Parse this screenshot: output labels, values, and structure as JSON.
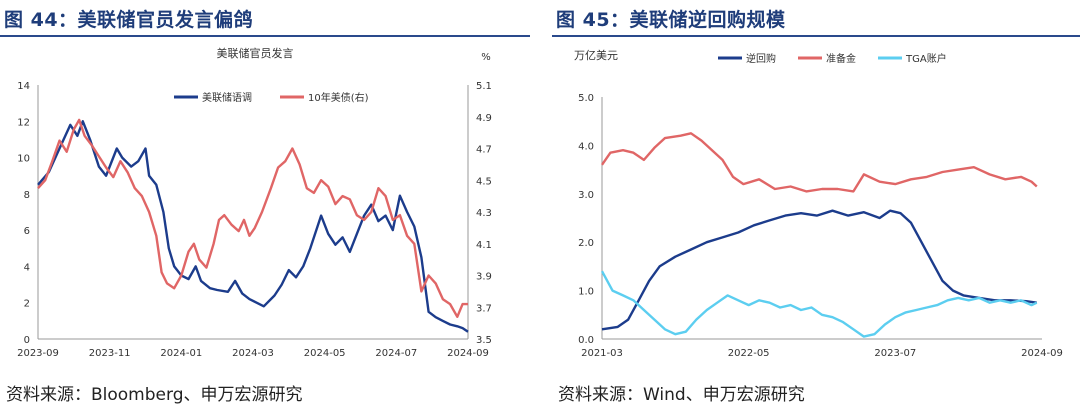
{
  "left_panel": {
    "figure_title": "图 44：美联储官员发言偏鸽",
    "source": "资料来源：Bloomberg、申万宏源研究"
  },
  "right_panel": {
    "figure_title": "图 45：美联储逆回购规模",
    "source": "资料来源：Wind、申万宏源研究"
  },
  "colors": {
    "navy": "#1c3c8c",
    "red": "#e06666",
    "cyan": "#5ccef0",
    "title_rule": "#2a4a8c"
  },
  "chart_data": [
    {
      "type": "line",
      "title": "美联储官员发言",
      "y2_unit": "%",
      "x_tick_labels": [
        "2023-09",
        "2023-11",
        "2024-01",
        "2024-03",
        "2024-05",
        "2024-07",
        "2024-09"
      ],
      "x_range_months": [
        0,
        12
      ],
      "ylim": [
        0,
        14
      ],
      "y_ticks": [
        0,
        2,
        4,
        6,
        8,
        10,
        12,
        14
      ],
      "y2lim": [
        3.5,
        5.1
      ],
      "y2_ticks": [
        "3.5",
        "3.7",
        "3.9",
        "4.1",
        "4.3",
        "4.5",
        "4.7",
        "4.9",
        "5.1"
      ],
      "series": [
        {
          "name": "美联储语调",
          "axis": "left",
          "color": "#1c3c8c",
          "points": [
            [
              0,
              8.5
            ],
            [
              0.3,
              9.2
            ],
            [
              0.6,
              10.5
            ],
            [
              0.9,
              11.8
            ],
            [
              1.1,
              11.2
            ],
            [
              1.25,
              12.0
            ],
            [
              1.45,
              11.0
            ],
            [
              1.7,
              9.5
            ],
            [
              1.9,
              9.0
            ],
            [
              2.2,
              10.5
            ],
            [
              2.35,
              10.0
            ],
            [
              2.6,
              9.5
            ],
            [
              2.8,
              9.8
            ],
            [
              3.0,
              10.5
            ],
            [
              3.1,
              9.0
            ],
            [
              3.3,
              8.5
            ],
            [
              3.5,
              7.0
            ],
            [
              3.65,
              5.0
            ],
            [
              3.8,
              4.0
            ],
            [
              4.0,
              3.5
            ],
            [
              4.2,
              3.3
            ],
            [
              4.4,
              4.0
            ],
            [
              4.55,
              3.2
            ],
            [
              4.8,
              2.8
            ],
            [
              5.0,
              2.7
            ],
            [
              5.3,
              2.6
            ],
            [
              5.5,
              3.2
            ],
            [
              5.7,
              2.5
            ],
            [
              5.9,
              2.2
            ],
            [
              6.1,
              2.0
            ],
            [
              6.3,
              1.8
            ],
            [
              6.6,
              2.4
            ],
            [
              6.8,
              3.0
            ],
            [
              7.0,
              3.8
            ],
            [
              7.2,
              3.4
            ],
            [
              7.4,
              4.0
            ],
            [
              7.6,
              5.0
            ],
            [
              7.8,
              6.2
            ],
            [
              7.9,
              6.8
            ],
            [
              8.1,
              5.8
            ],
            [
              8.3,
              5.2
            ],
            [
              8.5,
              5.6
            ],
            [
              8.7,
              4.8
            ],
            [
              8.9,
              5.8
            ],
            [
              9.1,
              6.8
            ],
            [
              9.3,
              7.4
            ],
            [
              9.5,
              6.5
            ],
            [
              9.7,
              6.8
            ],
            [
              9.9,
              6.0
            ],
            [
              10.1,
              7.9
            ],
            [
              10.3,
              7.0
            ],
            [
              10.5,
              6.2
            ],
            [
              10.7,
              4.5
            ],
            [
              10.8,
              3.0
            ],
            [
              10.9,
              1.5
            ],
            [
              11.1,
              1.2
            ],
            [
              11.3,
              1.0
            ],
            [
              11.5,
              0.8
            ],
            [
              11.7,
              0.7
            ],
            [
              11.85,
              0.6
            ],
            [
              12.0,
              0.4
            ]
          ]
        },
        {
          "name": "10年美债(右)",
          "axis": "right",
          "color": "#e06666",
          "points": [
            [
              0,
              4.45
            ],
            [
              0.2,
              4.5
            ],
            [
              0.4,
              4.62
            ],
            [
              0.6,
              4.75
            ],
            [
              0.8,
              4.68
            ],
            [
              1.0,
              4.82
            ],
            [
              1.15,
              4.88
            ],
            [
              1.3,
              4.78
            ],
            [
              1.5,
              4.72
            ],
            [
              1.7,
              4.65
            ],
            [
              1.9,
              4.58
            ],
            [
              2.1,
              4.52
            ],
            [
              2.3,
              4.62
            ],
            [
              2.5,
              4.55
            ],
            [
              2.7,
              4.45
            ],
            [
              2.9,
              4.4
            ],
            [
              3.1,
              4.3
            ],
            [
              3.3,
              4.15
            ],
            [
              3.45,
              3.92
            ],
            [
              3.6,
              3.85
            ],
            [
              3.8,
              3.82
            ],
            [
              4.0,
              3.9
            ],
            [
              4.2,
              4.05
            ],
            [
              4.35,
              4.1
            ],
            [
              4.5,
              4.0
            ],
            [
              4.7,
              3.95
            ],
            [
              4.9,
              4.1
            ],
            [
              5.05,
              4.25
            ],
            [
              5.2,
              4.28
            ],
            [
              5.4,
              4.22
            ],
            [
              5.6,
              4.18
            ],
            [
              5.75,
              4.25
            ],
            [
              5.9,
              4.15
            ],
            [
              6.05,
              4.2
            ],
            [
              6.25,
              4.3
            ],
            [
              6.5,
              4.45
            ],
            [
              6.7,
              4.58
            ],
            [
              6.9,
              4.62
            ],
            [
              7.1,
              4.7
            ],
            [
              7.3,
              4.6
            ],
            [
              7.5,
              4.45
            ],
            [
              7.7,
              4.42
            ],
            [
              7.9,
              4.5
            ],
            [
              8.1,
              4.46
            ],
            [
              8.3,
              4.35
            ],
            [
              8.5,
              4.4
            ],
            [
              8.7,
              4.38
            ],
            [
              8.9,
              4.28
            ],
            [
              9.1,
              4.25
            ],
            [
              9.3,
              4.3
            ],
            [
              9.5,
              4.45
            ],
            [
              9.7,
              4.4
            ],
            [
              9.9,
              4.25
            ],
            [
              10.1,
              4.28
            ],
            [
              10.3,
              4.15
            ],
            [
              10.5,
              4.1
            ],
            [
              10.7,
              3.8
            ],
            [
              10.9,
              3.9
            ],
            [
              11.1,
              3.85
            ],
            [
              11.3,
              3.75
            ],
            [
              11.5,
              3.72
            ],
            [
              11.7,
              3.64
            ],
            [
              11.85,
              3.72
            ],
            [
              12.0,
              3.72
            ]
          ]
        }
      ]
    },
    {
      "type": "line",
      "y_unit": "万亿美元",
      "x_tick_labels": [
        "2021-03",
        "2022-05",
        "2023-07",
        "2024-09"
      ],
      "x_range_months": [
        0,
        42
      ],
      "ylim": [
        0,
        5
      ],
      "y_ticks": [
        "0.0",
        "1.0",
        "2.0",
        "3.0",
        "4.0",
        "5.0"
      ],
      "series": [
        {
          "name": "逆回购",
          "color": "#1c3c8c",
          "points": [
            [
              0,
              0.2
            ],
            [
              1.5,
              0.25
            ],
            [
              2.5,
              0.4
            ],
            [
              3.5,
              0.8
            ],
            [
              4.5,
              1.2
            ],
            [
              5.5,
              1.5
            ],
            [
              7,
              1.7
            ],
            [
              8.5,
              1.85
            ],
            [
              10,
              2.0
            ],
            [
              11.5,
              2.1
            ],
            [
              13,
              2.2
            ],
            [
              14.5,
              2.35
            ],
            [
              16,
              2.45
            ],
            [
              17.5,
              2.55
            ],
            [
              19,
              2.6
            ],
            [
              20.5,
              2.55
            ],
            [
              22,
              2.65
            ],
            [
              23.5,
              2.55
            ],
            [
              25,
              2.62
            ],
            [
              26.5,
              2.5
            ],
            [
              27.5,
              2.65
            ],
            [
              28.5,
              2.6
            ],
            [
              29.5,
              2.4
            ],
            [
              30.5,
              2.0
            ],
            [
              31.5,
              1.6
            ],
            [
              32.5,
              1.2
            ],
            [
              33.5,
              1.0
            ],
            [
              34.5,
              0.9
            ],
            [
              36,
              0.85
            ],
            [
              37.5,
              0.8
            ],
            [
              39,
              0.8
            ],
            [
              40.5,
              0.78
            ],
            [
              41.5,
              0.75
            ]
          ]
        },
        {
          "name": "准备金",
          "color": "#e06666",
          "points": [
            [
              0,
              3.6
            ],
            [
              0.8,
              3.85
            ],
            [
              2,
              3.9
            ],
            [
              3,
              3.85
            ],
            [
              4,
              3.7
            ],
            [
              5,
              3.95
            ],
            [
              6,
              4.15
            ],
            [
              7.5,
              4.2
            ],
            [
              8.5,
              4.25
            ],
            [
              9.5,
              4.1
            ],
            [
              10.5,
              3.9
            ],
            [
              11.5,
              3.7
            ],
            [
              12.5,
              3.35
            ],
            [
              13.5,
              3.2
            ],
            [
              15,
              3.3
            ],
            [
              16.5,
              3.1
            ],
            [
              18,
              3.15
            ],
            [
              19.5,
              3.05
            ],
            [
              21,
              3.1
            ],
            [
              22.5,
              3.1
            ],
            [
              24,
              3.05
            ],
            [
              25,
              3.4
            ],
            [
              26.5,
              3.25
            ],
            [
              28,
              3.2
            ],
            [
              29.5,
              3.3
            ],
            [
              31,
              3.35
            ],
            [
              32.5,
              3.45
            ],
            [
              34,
              3.5
            ],
            [
              35.5,
              3.55
            ],
            [
              37,
              3.4
            ],
            [
              38.5,
              3.3
            ],
            [
              40,
              3.35
            ],
            [
              41,
              3.25
            ],
            [
              41.5,
              3.15
            ]
          ]
        },
        {
          "name": "TGA账户",
          "color": "#5ccef0",
          "points": [
            [
              0,
              1.4
            ],
            [
              1,
              1.0
            ],
            [
              2,
              0.9
            ],
            [
              3,
              0.8
            ],
            [
              4,
              0.6
            ],
            [
              5,
              0.4
            ],
            [
              6,
              0.2
            ],
            [
              7,
              0.1
            ],
            [
              8,
              0.15
            ],
            [
              9,
              0.4
            ],
            [
              10,
              0.6
            ],
            [
              11,
              0.75
            ],
            [
              12,
              0.9
            ],
            [
              13,
              0.8
            ],
            [
              14,
              0.7
            ],
            [
              15,
              0.8
            ],
            [
              16,
              0.75
            ],
            [
              17,
              0.65
            ],
            [
              18,
              0.7
            ],
            [
              19,
              0.6
            ],
            [
              20,
              0.65
            ],
            [
              21,
              0.5
            ],
            [
              22,
              0.45
            ],
            [
              23,
              0.35
            ],
            [
              24,
              0.2
            ],
            [
              25,
              0.05
            ],
            [
              26,
              0.1
            ],
            [
              27,
              0.3
            ],
            [
              28,
              0.45
            ],
            [
              29,
              0.55
            ],
            [
              30,
              0.6
            ],
            [
              31,
              0.65
            ],
            [
              32,
              0.7
            ],
            [
              33,
              0.8
            ],
            [
              34,
              0.85
            ],
            [
              35,
              0.8
            ],
            [
              36,
              0.85
            ],
            [
              37,
              0.75
            ],
            [
              38,
              0.8
            ],
            [
              39,
              0.75
            ],
            [
              40,
              0.8
            ],
            [
              41,
              0.7
            ],
            [
              41.5,
              0.75
            ]
          ]
        }
      ]
    }
  ]
}
